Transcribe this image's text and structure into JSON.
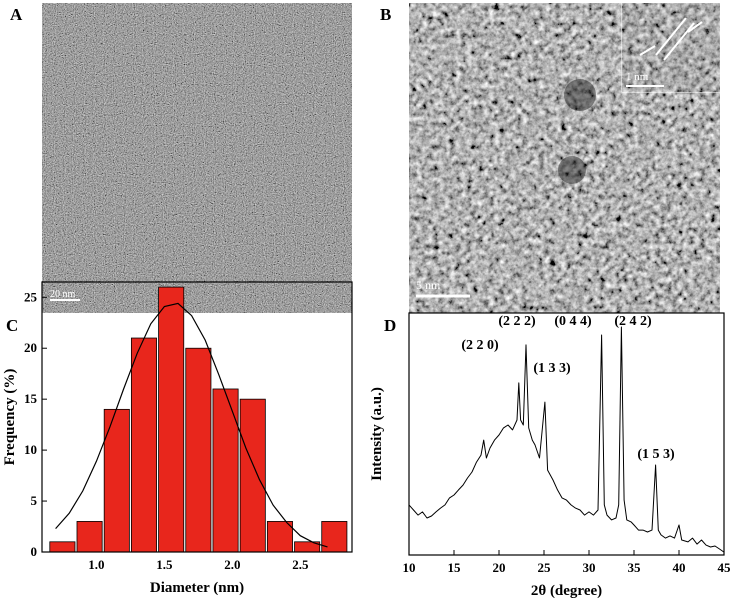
{
  "images": [
    {
      "label": "A",
      "scale_bar": "20 nm"
    },
    {
      "label": "B",
      "scale_bar": "5 nm",
      "inset_scale_bar": "1 nm"
    }
  ],
  "chart_data": [
    {
      "type": "histogram",
      "label": "C",
      "bins": [
        0.65,
        0.85,
        1.05,
        1.25,
        1.45,
        1.65,
        1.85,
        2.05,
        2.25,
        2.45,
        2.65,
        2.85
      ],
      "values": [
        1,
        3,
        14,
        21,
        26,
        20,
        16,
        15,
        3,
        1,
        3
      ],
      "color": "#e8261c",
      "xlim": [
        0.6,
        2.88
      ],
      "xticks": [
        {
          "value": 1,
          "label": "1.0"
        },
        {
          "value": 1.5,
          "label": "1.5"
        },
        {
          "value": 2,
          "label": "2.0"
        },
        {
          "value": 2.5,
          "label": "2.5"
        }
      ],
      "ylim": [
        0,
        26.5
      ],
      "yticks": [
        0,
        5,
        10,
        15,
        20,
        25
      ],
      "x_label": "Diameter (nm)",
      "y_label": "Frequency (%)",
      "fit": {
        "color": "#000000",
        "x": [
          0.7,
          0.8,
          0.9,
          1.0,
          1.1,
          1.2,
          1.3,
          1.4,
          1.5,
          1.6,
          1.7,
          1.8,
          1.9,
          2.0,
          2.1,
          2.2,
          2.3,
          2.4,
          2.5,
          2.6,
          2.7
        ],
        "values": [
          2.3,
          3.8,
          6.0,
          8.9,
          12.3,
          16.0,
          19.5,
          22.4,
          24.1,
          24.4,
          23.2,
          20.8,
          17.4,
          13.8,
          10.2,
          7.1,
          4.6,
          2.9,
          1.6,
          0.9,
          0.5
        ]
      }
    },
    {
      "type": "line",
      "label": "D",
      "color": "#000000",
      "x": [
        10,
        10.5,
        11,
        11.5,
        12,
        12.5,
        13,
        13.5,
        14,
        14.5,
        15,
        15.5,
        16,
        16.5,
        17,
        17.5,
        18,
        18.3,
        18.6,
        19,
        19.5,
        20,
        20.5,
        21,
        21.5,
        22,
        22.2,
        22.4,
        22.7,
        23.0,
        23.3,
        23.7,
        24,
        24.5,
        25.1,
        25.4,
        26,
        26.5,
        27,
        27.5,
        28,
        28.5,
        29,
        29.5,
        30,
        30.5,
        31,
        31.4,
        31.7,
        32,
        32.5,
        33,
        33.3,
        33.6,
        33.9,
        34.2,
        34.7,
        35,
        35.5,
        36,
        36.5,
        37,
        37.4,
        37.7,
        38,
        38.5,
        39,
        39.5,
        40,
        40.3,
        41,
        41.5,
        42,
        42.5,
        43,
        43.5,
        44,
        44.5,
        45
      ],
      "values": [
        20.7,
        18.6,
        16.5,
        17.8,
        15.3,
        16.1,
        17.8,
        19.4,
        20.7,
        23.6,
        24.8,
        26.9,
        28.9,
        31.8,
        34.3,
        38.4,
        41.3,
        47.5,
        40.1,
        44.2,
        47.5,
        49.6,
        52.5,
        53.7,
        51.7,
        55.8,
        71.1,
        55.8,
        53.7,
        86.8,
        52.5,
        47.5,
        45.5,
        40.1,
        63.2,
        35.1,
        31.0,
        26.9,
        23.6,
        22.7,
        20.7,
        19.4,
        18.6,
        16.5,
        17.8,
        16.5,
        18.6,
        90.9,
        20.7,
        16.5,
        14.5,
        15.3,
        20.7,
        94.2,
        22.7,
        14.5,
        13.6,
        12.4,
        10.3,
        10.3,
        9.5,
        10.3,
        37.2,
        10.3,
        8.3,
        7.0,
        7.9,
        7.0,
        12.4,
        6.2,
        5.4,
        7.0,
        4.5,
        6.2,
        4.1,
        3.3,
        3.7,
        2.5,
        1.2
      ],
      "xlim": [
        10,
        45
      ],
      "xticks": [
        10,
        15,
        20,
        25,
        30,
        35,
        40,
        45
      ],
      "ylim": [
        0,
        100
      ],
      "x_label": "2θ (degree)",
      "y_label": "Intensity (a.u.)",
      "annotations": [
        "(2 2 0)",
        "(2 2 2)",
        "(1 3 3)",
        "(0 4 4)",
        "(2 4 2)",
        "(1 5 3)"
      ]
    }
  ]
}
